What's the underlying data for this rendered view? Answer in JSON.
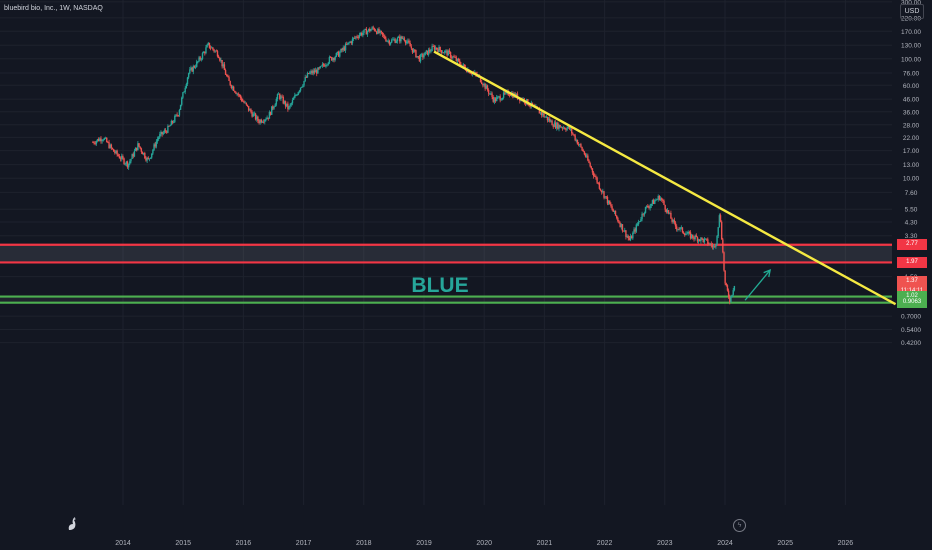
{
  "header": {
    "title": "bluebird bio, Inc., 1W, NASDAQ"
  },
  "currency": "USD",
  "colors": {
    "background": "#131722",
    "grid": "#1e222d",
    "up": "#26a69a",
    "down": "#ef5350",
    "trendline": "#f5e942",
    "resistance": "#f23645",
    "support": "#4caf50",
    "annotation": "#22ab94"
  },
  "chart_data": {
    "type": "candlestick",
    "title": "BLUE",
    "symbol": "bluebird bio, Inc.",
    "interval": "1W",
    "exchange": "NASDAQ",
    "currency": "USD",
    "y_scale": "log",
    "y_ticks": [
      "300.00",
      "220.00",
      "170.00",
      "130.00",
      "100.00",
      "76.00",
      "60.00",
      "46.00",
      "36.00",
      "28.00",
      "22.00",
      "17.00",
      "13.00",
      "10.00",
      "7.60",
      "5.50",
      "4.30",
      "3.30",
      "1.50",
      "0.7000",
      "0.5400",
      "0.4200"
    ],
    "x_ticks": [
      "2014",
      "2015",
      "2016",
      "2017",
      "2018",
      "2019",
      "2020",
      "2021",
      "2022",
      "2023",
      "2024",
      "2025",
      "2026"
    ],
    "price_series": [
      {
        "date": "2013-07",
        "close": 20
      },
      {
        "date": "2013-09",
        "close": 22
      },
      {
        "date": "2013-11",
        "close": 17
      },
      {
        "date": "2014-02",
        "close": 13
      },
      {
        "date": "2014-04",
        "close": 19
      },
      {
        "date": "2014-06",
        "close": 14
      },
      {
        "date": "2014-08",
        "close": 22
      },
      {
        "date": "2014-10",
        "close": 26
      },
      {
        "date": "2014-12",
        "close": 35
      },
      {
        "date": "2015-02",
        "close": 75
      },
      {
        "date": "2015-04",
        "close": 95
      },
      {
        "date": "2015-06",
        "close": 130
      },
      {
        "date": "2015-08",
        "close": 110
      },
      {
        "date": "2015-10",
        "close": 65
      },
      {
        "date": "2015-12",
        "close": 50
      },
      {
        "date": "2016-02",
        "close": 38
      },
      {
        "date": "2016-04",
        "close": 30
      },
      {
        "date": "2016-06",
        "close": 33
      },
      {
        "date": "2016-08",
        "close": 50
      },
      {
        "date": "2016-10",
        "close": 38
      },
      {
        "date": "2016-12",
        "close": 55
      },
      {
        "date": "2017-02",
        "close": 75
      },
      {
        "date": "2017-04",
        "close": 80
      },
      {
        "date": "2017-06",
        "close": 98
      },
      {
        "date": "2017-08",
        "close": 110
      },
      {
        "date": "2017-10",
        "close": 135
      },
      {
        "date": "2017-12",
        "close": 160
      },
      {
        "date": "2018-03",
        "close": 180
      },
      {
        "date": "2018-06",
        "close": 140
      },
      {
        "date": "2018-09",
        "close": 150
      },
      {
        "date": "2018-12",
        "close": 100
      },
      {
        "date": "2019-03",
        "close": 125
      },
      {
        "date": "2019-06",
        "close": 110
      },
      {
        "date": "2019-09",
        "close": 85
      },
      {
        "date": "2019-12",
        "close": 70
      },
      {
        "date": "2020-03",
        "close": 45
      },
      {
        "date": "2020-06",
        "close": 52
      },
      {
        "date": "2020-09",
        "close": 45
      },
      {
        "date": "2020-12",
        "close": 36
      },
      {
        "date": "2021-03",
        "close": 28
      },
      {
        "date": "2021-06",
        "close": 26
      },
      {
        "date": "2021-09",
        "close": 16
      },
      {
        "date": "2021-12",
        "close": 8.5
      },
      {
        "date": "2022-03",
        "close": 5
      },
      {
        "date": "2022-06",
        "close": 3
      },
      {
        "date": "2022-09",
        "close": 5.5
      },
      {
        "date": "2022-12",
        "close": 7
      },
      {
        "date": "2023-03",
        "close": 4
      },
      {
        "date": "2023-06",
        "close": 3.3
      },
      {
        "date": "2023-09",
        "close": 3
      },
      {
        "date": "2023-11",
        "close": 2.6
      },
      {
        "date": "2023-12",
        "close": 5.2
      },
      {
        "date": "2024-01",
        "close": 1.3
      },
      {
        "date": "2024-02",
        "close": 0.95
      },
      {
        "date": "2024-03",
        "close": 1.37
      }
    ],
    "trendline": {
      "from": {
        "date": "2019-03",
        "price": 115
      },
      "to": {
        "date": "2026-11",
        "price": 0.88
      }
    },
    "zones": [
      {
        "name": "resistance",
        "upper": 2.77,
        "lower": 1.97
      },
      {
        "name": "support",
        "upper": 1.02,
        "lower": 0.9063
      }
    ],
    "arrow": {
      "from": {
        "date": "2024-05",
        "price": 0.95
      },
      "to": {
        "date": "2024-10",
        "price": 1.7
      }
    },
    "price_labels": [
      {
        "value": "2.77",
        "kind": "resistance"
      },
      {
        "value": "1.97",
        "kind": "resistance"
      },
      {
        "value": "1.37",
        "kind": "current"
      },
      {
        "value": "11:14:11",
        "kind": "countdown"
      },
      {
        "value": "1.02",
        "kind": "support"
      },
      {
        "value": "0.9063",
        "kind": "support"
      }
    ]
  }
}
